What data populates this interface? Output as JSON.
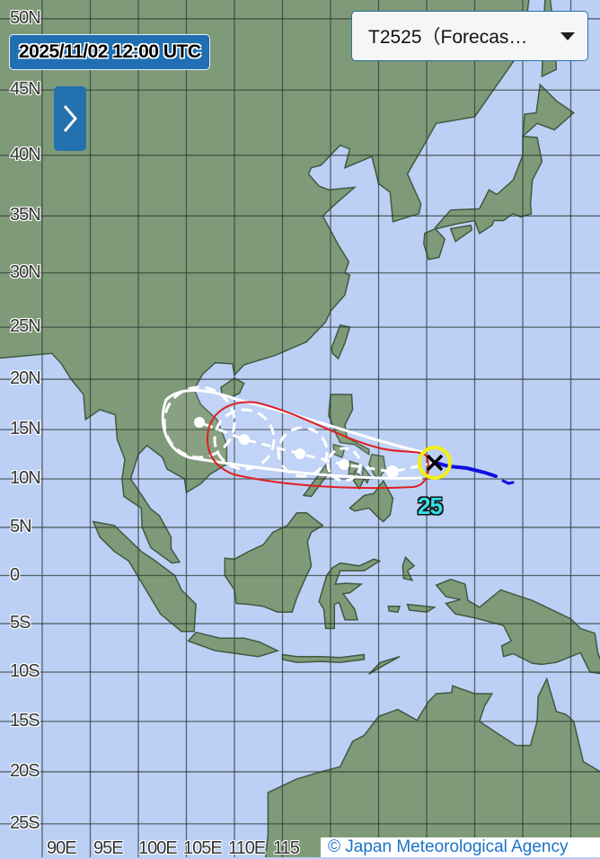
{
  "header": {
    "datetime": "2025/11/02 12:00 UTC",
    "expand_icon": "chevron-right-icon",
    "typhoon_select": {
      "selected": "T2525（Forecas…",
      "icon": "caret-down-icon"
    }
  },
  "map": {
    "lat_labels": [
      "50N",
      "45N",
      "40N",
      "35N",
      "30N",
      "25N",
      "20N",
      "15N",
      "10N",
      "5N",
      "0",
      "5S",
      "10S",
      "15S",
      "20S",
      "25S"
    ],
    "lon_labels": [
      "90E",
      "95E",
      "100E",
      "105E",
      "110E",
      "115"
    ],
    "typhoon_number": "25",
    "colors": {
      "sea": "#bcd0f6",
      "land": "#7f9a78",
      "grid": "#2f3d34",
      "storm_warning_area": "#e02020",
      "forecast_circle": "#ffffff",
      "past_track": "#1010e0",
      "current_position_ring": "#f5ee10",
      "typhoon_number": "#33e0e8",
      "ui_blue": "#1f6fb2"
    }
  },
  "footer": {
    "copyright": "© Japan Meteorological Agency"
  }
}
